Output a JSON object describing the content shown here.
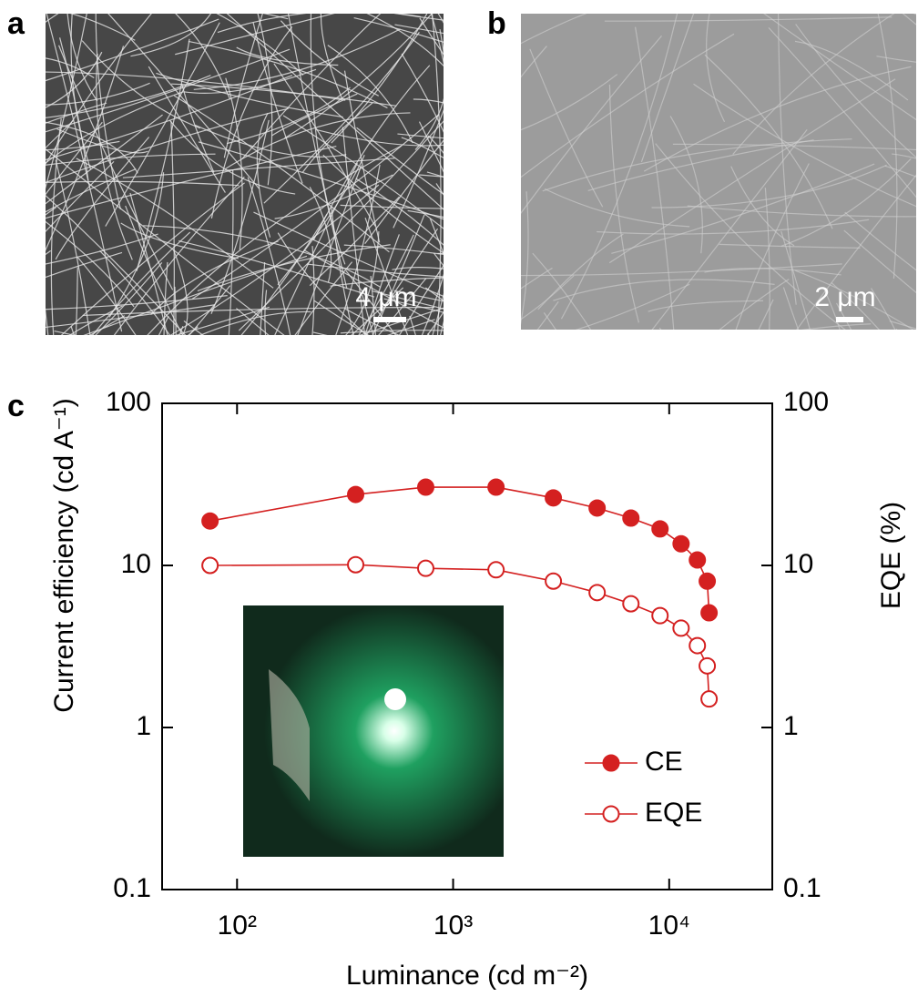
{
  "panels": {
    "a": {
      "label": "a",
      "scale_bar": "4 μm"
    },
    "b": {
      "label": "b",
      "scale_bar": "2 μm"
    },
    "c": {
      "label": "c"
    }
  },
  "chart_data": {
    "type": "line",
    "x_label": "Luminance (cd m⁻²)",
    "y_label": "Current efficiency (cd A⁻¹)",
    "y2_label": "EQE (%)",
    "x_scale": "log",
    "y_scale": "log",
    "xlim": [
      45,
      30000
    ],
    "xticks": [
      {
        "value": 100,
        "label": "10²"
      },
      {
        "value": 1000,
        "label": "10³"
      },
      {
        "value": 10000,
        "label": "10⁴"
      }
    ],
    "ylim": [
      0.1,
      100
    ],
    "yticks": [
      0.1,
      1,
      10,
      100
    ],
    "y2lim": [
      0.1,
      100
    ],
    "y2ticks": [
      0.1,
      1,
      10,
      100
    ],
    "legend": "lower right",
    "series": [
      {
        "name": "CE",
        "color": "#d42020",
        "marker": "filled",
        "x": [
          75,
          354,
          747,
          1580,
          2910,
          4640,
          6650,
          9070,
          11350,
          13500,
          15000,
          15300
        ],
        "values": [
          18.8,
          27.4,
          30.4,
          30.4,
          26.1,
          22.6,
          19.6,
          16.8,
          13.6,
          10.8,
          8.0,
          5.1
        ]
      },
      {
        "name": "EQE",
        "color": "#d42020",
        "marker": "open",
        "axis": "y2",
        "x": [
          75,
          354,
          747,
          1580,
          2910,
          4640,
          6650,
          9070,
          11350,
          13500,
          15000,
          15300
        ],
        "values": [
          10.0,
          10.1,
          9.6,
          9.4,
          8.0,
          6.8,
          5.8,
          4.9,
          4.1,
          3.2,
          2.4,
          1.5
        ]
      }
    ]
  }
}
